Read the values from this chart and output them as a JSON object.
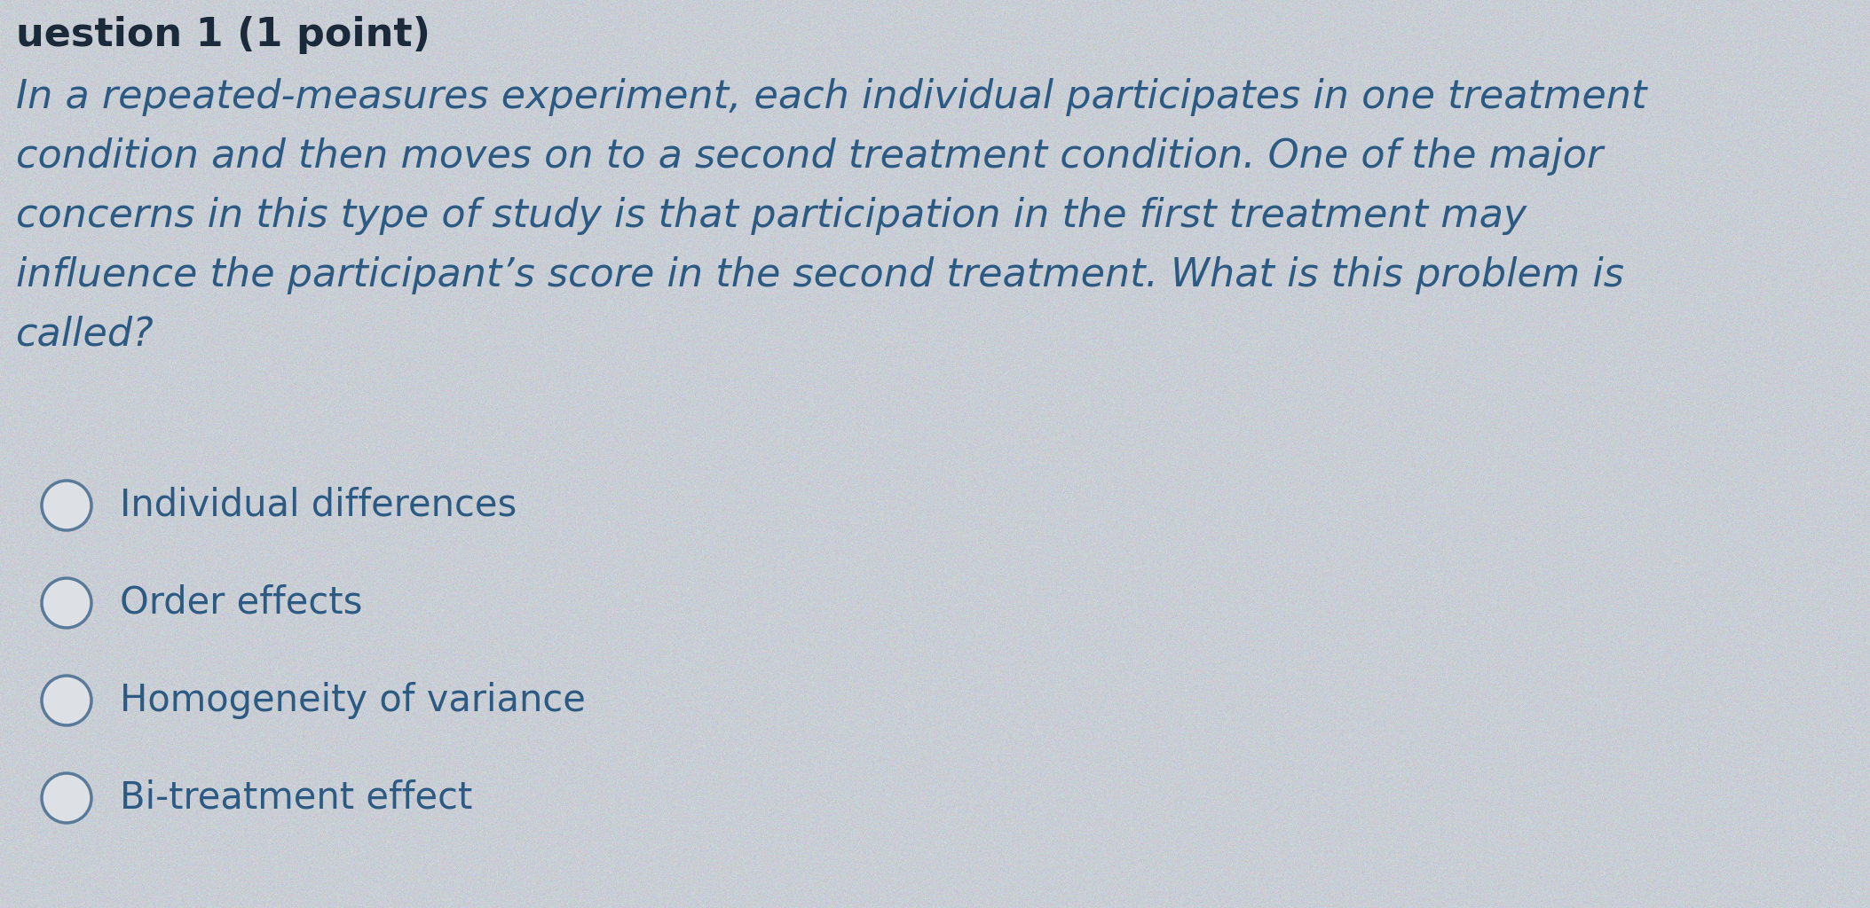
{
  "background_color": "#c9ced5",
  "header_text": "uestion 1 (1 point)",
  "header_color": "#1a2a3a",
  "header_fontsize": 32,
  "question_lines": [
    "In a repeated-measures experiment, each individual participates in one treatment",
    "condition and then moves on to a second treatment condition. One of the major",
    "concerns in this type of study is that participation in the first treatment may",
    "influence the participant’s score in the second treatment. What is this problem is",
    "called?"
  ],
  "question_color": "#2d5a82",
  "question_fontsize": 32,
  "question_linespacing": 1.55,
  "options": [
    "Individual differences",
    "Order effects",
    "Homogeneity of variance",
    "Bi-treatment effect"
  ],
  "option_color": "#2d5a82",
  "option_fontsize": 30,
  "radio_fill_color": "#dde0e5",
  "radio_edge_color": "#5a7a9a",
  "radio_linewidth": 2.5
}
